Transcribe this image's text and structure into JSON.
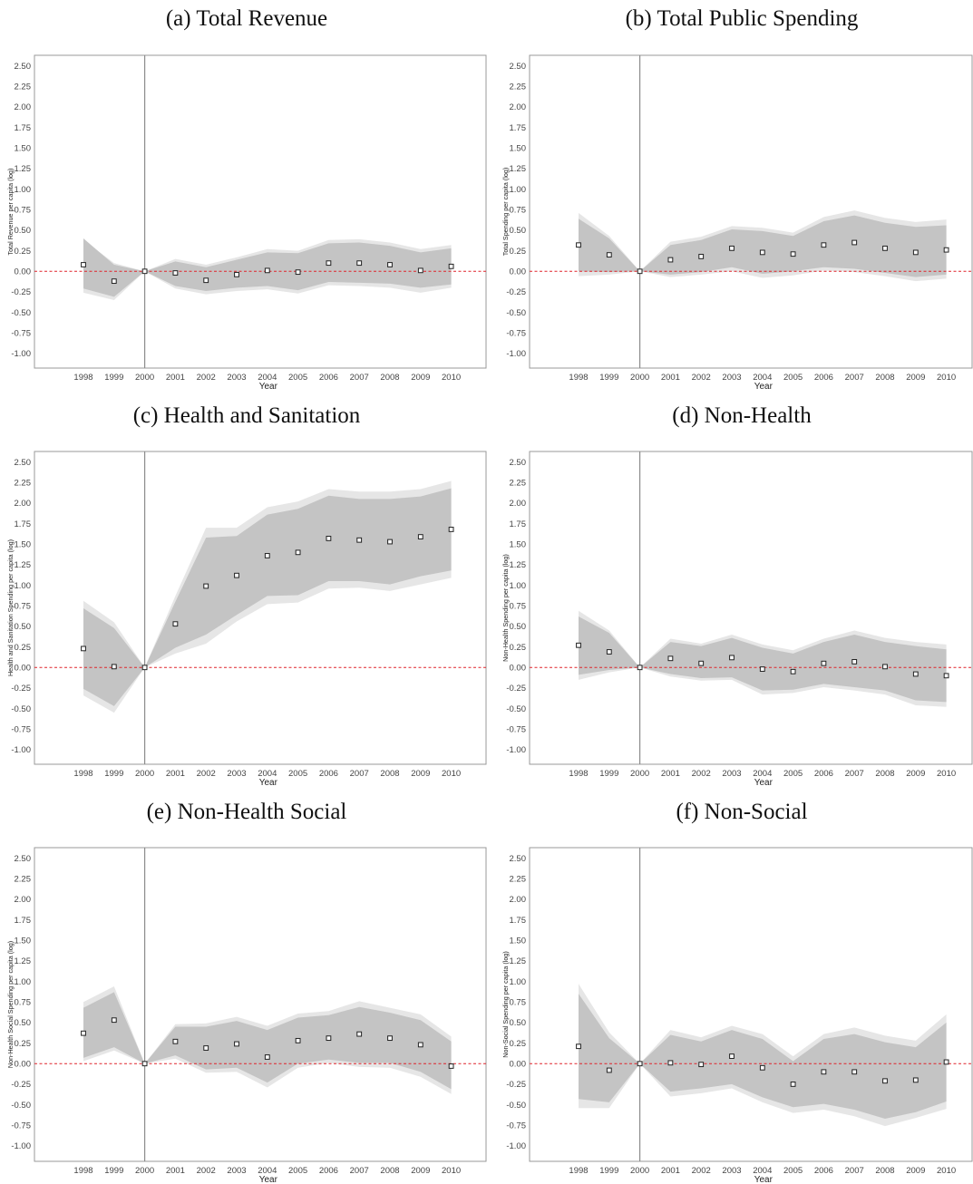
{
  "chart_data": [
    {
      "type": "scatter",
      "title": "(a) Total Revenue",
      "xlabel": "Year",
      "ylabel": "Total Revenue per capita (log)",
      "x": [
        1998,
        1999,
        2000,
        2001,
        2002,
        2003,
        2004,
        2005,
        2006,
        2007,
        2008,
        2009,
        2010
      ],
      "ylim": [
        -1.15,
        2.65
      ],
      "yticks": [
        "2.50",
        "2.25",
        "2.00",
        "1.75",
        "1.50",
        "1.25",
        "1.00",
        "0.75",
        "0.50",
        "0.25",
        "0.00",
        "-0.25",
        "-0.50",
        "-0.75",
        "-1.00"
      ],
      "event_year": 2000,
      "reference_line": 0,
      "series": [
        {
          "values": [
            0.08,
            -0.12,
            0.0,
            -0.02,
            -0.11,
            -0.04,
            0.01,
            -0.01,
            0.1,
            0.1,
            0.08,
            0.01,
            0.06
          ],
          "ci95_upper": [
            0.38,
            0.1,
            0.0,
            0.15,
            0.08,
            0.17,
            0.27,
            0.25,
            0.38,
            0.39,
            0.35,
            0.27,
            0.32
          ],
          "ci95_lower": [
            -0.26,
            -0.35,
            0.0,
            -0.21,
            -0.28,
            -0.24,
            -0.22,
            -0.27,
            -0.17,
            -0.18,
            -0.2,
            -0.26,
            -0.2
          ],
          "ci90_upper": [
            0.4,
            0.08,
            0.0,
            0.12,
            0.05,
            0.14,
            0.23,
            0.22,
            0.34,
            0.35,
            0.31,
            0.23,
            0.28
          ],
          "ci90_lower": [
            -0.21,
            -0.31,
            0.0,
            -0.18,
            -0.24,
            -0.2,
            -0.18,
            -0.23,
            -0.13,
            -0.14,
            -0.15,
            -0.2,
            -0.16
          ]
        }
      ]
    },
    {
      "type": "scatter",
      "title": "(b) Total Public Spending",
      "xlabel": "Year",
      "ylabel": "Total Spending per capita (log)",
      "x": [
        1998,
        1999,
        2000,
        2001,
        2002,
        2003,
        2004,
        2005,
        2006,
        2007,
        2008,
        2009,
        2010
      ],
      "ylim": [
        -1.15,
        2.65
      ],
      "yticks": [
        "2.50",
        "2.25",
        "2.00",
        "1.75",
        "1.50",
        "1.25",
        "1.00",
        "0.75",
        "0.50",
        "0.25",
        "0.00",
        "-0.25",
        "-0.50",
        "-0.75",
        "-1.00"
      ],
      "event_year": 2000,
      "reference_line": 0,
      "series": [
        {
          "values": [
            0.32,
            0.2,
            0.0,
            0.14,
            0.18,
            0.28,
            0.23,
            0.21,
            0.32,
            0.35,
            0.28,
            0.23,
            0.26
          ],
          "ci95_upper": [
            0.71,
            0.43,
            0.0,
            0.36,
            0.42,
            0.55,
            0.53,
            0.47,
            0.66,
            0.74,
            0.65,
            0.6,
            0.63
          ],
          "ci95_lower": [
            -0.06,
            -0.04,
            0.0,
            -0.07,
            -0.04,
            0.0,
            -0.08,
            -0.05,
            0.01,
            -0.01,
            -0.06,
            -0.12,
            -0.09
          ],
          "ci90_upper": [
            0.64,
            0.4,
            0.0,
            0.32,
            0.38,
            0.51,
            0.49,
            0.43,
            0.61,
            0.68,
            0.59,
            0.54,
            0.56
          ],
          "ci90_lower": [
            0.0,
            -0.01,
            0.0,
            -0.04,
            -0.01,
            0.05,
            -0.03,
            0.0,
            0.05,
            0.03,
            -0.02,
            -0.07,
            -0.04
          ]
        }
      ]
    },
    {
      "type": "scatter",
      "title": "(c) Health and Sanitation",
      "xlabel": "Year",
      "ylabel": "Health and Sanitation Spending per capita (log)",
      "x": [
        1998,
        1999,
        2000,
        2001,
        2002,
        2003,
        2004,
        2005,
        2006,
        2007,
        2008,
        2009,
        2010
      ],
      "ylim": [
        -1.15,
        2.65
      ],
      "yticks": [
        "2.50",
        "2.25",
        "2.00",
        "1.75",
        "1.50",
        "1.25",
        "1.00",
        "0.75",
        "0.50",
        "0.25",
        "0.00",
        "-0.25",
        "-0.50",
        "-0.75",
        "-1.00"
      ],
      "event_year": 2000,
      "reference_line": 0,
      "series": [
        {
          "values": [
            0.23,
            0.01,
            0.0,
            0.53,
            0.99,
            1.12,
            1.36,
            1.4,
            1.57,
            1.55,
            1.53,
            1.59,
            1.68
          ],
          "ci95_upper": [
            0.81,
            0.55,
            0.0,
            0.87,
            1.7,
            1.7,
            1.95,
            2.02,
            2.17,
            2.14,
            2.14,
            2.17,
            2.27
          ],
          "ci95_lower": [
            -0.34,
            -0.55,
            0.0,
            0.17,
            0.29,
            0.56,
            0.77,
            0.79,
            0.96,
            0.97,
            0.93,
            1.01,
            1.09
          ],
          "ci90_upper": [
            0.72,
            0.48,
            0.0,
            0.8,
            1.58,
            1.6,
            1.86,
            1.93,
            2.09,
            2.05,
            2.05,
            2.08,
            2.18
          ],
          "ci90_lower": [
            -0.26,
            -0.47,
            0.0,
            0.24,
            0.4,
            0.64,
            0.87,
            0.88,
            1.05,
            1.05,
            1.01,
            1.11,
            1.18
          ]
        }
      ]
    },
    {
      "type": "scatter",
      "title": "(d) Non-Health",
      "xlabel": "Year",
      "ylabel": "Non-Health Spending per capita (log)",
      "x": [
        1998,
        1999,
        2000,
        2001,
        2002,
        2003,
        2004,
        2005,
        2006,
        2007,
        2008,
        2009,
        2010
      ],
      "ylim": [
        -1.15,
        2.65
      ],
      "yticks": [
        "2.50",
        "2.25",
        "2.00",
        "1.75",
        "1.50",
        "1.25",
        "1.00",
        "0.75",
        "0.50",
        "0.25",
        "0.00",
        "-0.25",
        "-0.50",
        "-0.75",
        "-1.00"
      ],
      "event_year": 2000,
      "reference_line": 0,
      "series": [
        {
          "values": [
            0.27,
            0.19,
            0.0,
            0.11,
            0.05,
            0.12,
            -0.02,
            -0.05,
            0.05,
            0.07,
            0.01,
            -0.08,
            -0.1
          ],
          "ci95_upper": [
            0.69,
            0.45,
            0.0,
            0.35,
            0.29,
            0.4,
            0.28,
            0.21,
            0.35,
            0.45,
            0.36,
            0.31,
            0.28
          ],
          "ci95_lower": [
            -0.15,
            -0.06,
            0.0,
            -0.11,
            -0.16,
            -0.15,
            -0.33,
            -0.31,
            -0.24,
            -0.28,
            -0.33,
            -0.46,
            -0.48
          ],
          "ci90_upper": [
            0.62,
            0.42,
            0.0,
            0.31,
            0.26,
            0.36,
            0.24,
            0.17,
            0.31,
            0.4,
            0.31,
            0.26,
            0.22
          ],
          "ci90_lower": [
            -0.09,
            -0.03,
            0.0,
            -0.08,
            -0.13,
            -0.12,
            -0.28,
            -0.27,
            -0.2,
            -0.24,
            -0.28,
            -0.4,
            -0.42
          ]
        }
      ]
    },
    {
      "type": "scatter",
      "title": "(e) Non-Health Social",
      "xlabel": "Year",
      "ylabel": "Non-Health Social Spending per capita (log)",
      "x": [
        1998,
        1999,
        2000,
        2001,
        2002,
        2003,
        2004,
        2005,
        2006,
        2007,
        2008,
        2009,
        2010
      ],
      "ylim": [
        -1.15,
        2.65
      ],
      "yticks": [
        "2.50",
        "2.25",
        "2.00",
        "1.75",
        "1.50",
        "1.25",
        "1.00",
        "0.75",
        "0.50",
        "0.25",
        "0.00",
        "-0.25",
        "-0.50",
        "-0.75",
        "-1.00"
      ],
      "event_year": 2000,
      "reference_line": 0,
      "series": [
        {
          "values": [
            0.37,
            0.53,
            0.0,
            0.27,
            0.19,
            0.24,
            0.08,
            0.28,
            0.31,
            0.36,
            0.31,
            0.23,
            -0.03
          ],
          "ci95_upper": [
            0.75,
            0.94,
            0.0,
            0.48,
            0.49,
            0.57,
            0.46,
            0.61,
            0.64,
            0.76,
            0.68,
            0.6,
            0.33
          ],
          "ci95_lower": [
            0.03,
            0.16,
            0.0,
            0.06,
            -0.11,
            -0.1,
            -0.29,
            -0.05,
            0.01,
            -0.04,
            -0.05,
            -0.16,
            -0.37
          ],
          "ci90_upper": [
            0.68,
            0.87,
            0.0,
            0.45,
            0.45,
            0.52,
            0.41,
            0.56,
            0.59,
            0.69,
            0.62,
            0.53,
            0.27
          ],
          "ci90_lower": [
            0.07,
            0.2,
            0.0,
            0.1,
            -0.07,
            -0.05,
            -0.23,
            0.0,
            0.05,
            0.01,
            0.01,
            -0.1,
            -0.31
          ]
        }
      ]
    },
    {
      "type": "scatter",
      "title": "(f) Non-Social",
      "xlabel": "Year",
      "ylabel": "Non-Social Spending per capita (log)",
      "x": [
        1998,
        1999,
        2000,
        2001,
        2002,
        2003,
        2004,
        2005,
        2006,
        2007,
        2008,
        2009,
        2010
      ],
      "ylim": [
        -1.15,
        2.65
      ],
      "yticks": [
        "2.50",
        "2.25",
        "2.00",
        "1.75",
        "1.50",
        "1.25",
        "1.00",
        "0.75",
        "0.50",
        "0.25",
        "0.00",
        "-0.25",
        "-0.50",
        "-0.75",
        "-1.00"
      ],
      "event_year": 2000,
      "reference_line": 0,
      "series": [
        {
          "values": [
            0.21,
            -0.08,
            0.0,
            0.01,
            -0.01,
            0.09,
            -0.05,
            -0.25,
            -0.1,
            -0.1,
            -0.21,
            -0.2,
            0.02
          ],
          "ci95_upper": [
            0.97,
            0.38,
            0.0,
            0.41,
            0.32,
            0.46,
            0.36,
            0.09,
            0.36,
            0.44,
            0.34,
            0.28,
            0.6
          ],
          "ci95_lower": [
            -0.54,
            -0.54,
            0.0,
            -0.4,
            -0.36,
            -0.3,
            -0.47,
            -0.6,
            -0.56,
            -0.64,
            -0.76,
            -0.66,
            -0.55
          ],
          "ci90_upper": [
            0.85,
            0.31,
            0.0,
            0.35,
            0.27,
            0.41,
            0.3,
            0.03,
            0.3,
            0.36,
            0.26,
            0.2,
            0.5
          ],
          "ci90_lower": [
            -0.43,
            -0.47,
            0.0,
            -0.34,
            -0.3,
            -0.25,
            -0.41,
            -0.53,
            -0.49,
            -0.56,
            -0.67,
            -0.59,
            -0.46
          ]
        }
      ]
    }
  ]
}
